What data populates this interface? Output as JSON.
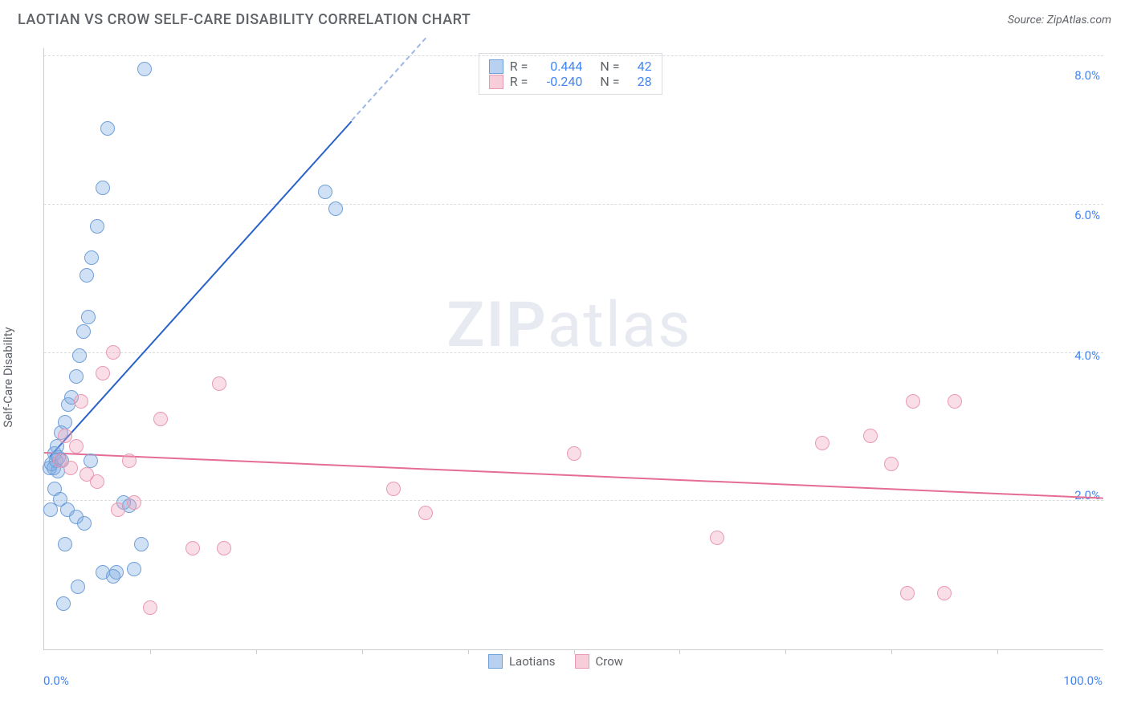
{
  "header": {
    "title": "LAOTIAN VS CROW SELF-CARE DISABILITY CORRELATION CHART",
    "source": "Source: ZipAtlas.com"
  },
  "y_axis_label": "Self-Care Disability",
  "watermark": {
    "zip": "ZIP",
    "atlas": "atlas"
  },
  "chart": {
    "type": "scatter",
    "xlim": [
      0,
      100
    ],
    "ylim": [
      0,
      8.6
    ],
    "x_ticks_minor": [
      10,
      20,
      30,
      40,
      50,
      60,
      70,
      80,
      90
    ],
    "x_tick_labels": [
      {
        "x": 0,
        "text": "0.0%",
        "align": "left"
      },
      {
        "x": 100,
        "text": "100.0%",
        "align": "right"
      }
    ],
    "y_ticks": [
      2.0,
      4.0,
      6.0,
      8.0
    ],
    "y_tick_labels": [
      "2.0%",
      "4.0%",
      "6.0%",
      "8.0%"
    ],
    "grid_y_dashed": [
      2.12,
      4.24,
      6.36,
      8.48
    ],
    "background_color": "#ffffff",
    "grid_color": "#dadce0",
    "axis_color": "#cccccc",
    "tick_label_color": "#4285f4",
    "series": [
      {
        "name": "Laotians",
        "marker_fill": "rgba(123,170,227,0.35)",
        "marker_stroke": "#6fa0d8",
        "marker_radius": 9,
        "trend": {
          "color": "#2a62c9",
          "x1": 0.5,
          "y1": 2.75,
          "x2": 29,
          "y2": 7.55,
          "dash_extend_to_x": 36
        },
        "points": [
          [
            0.5,
            2.6
          ],
          [
            0.7,
            2.65
          ],
          [
            0.9,
            2.6
          ],
          [
            1.1,
            2.7
          ],
          [
            1.3,
            2.55
          ],
          [
            1.0,
            2.8
          ],
          [
            1.4,
            2.75
          ],
          [
            1.7,
            2.7
          ],
          [
            1.2,
            2.9
          ],
          [
            1.6,
            3.1
          ],
          [
            2.0,
            3.25
          ],
          [
            2.3,
            3.5
          ],
          [
            2.6,
            3.6
          ],
          [
            3.0,
            3.9
          ],
          [
            3.3,
            4.2
          ],
          [
            3.7,
            4.55
          ],
          [
            4.2,
            4.75
          ],
          [
            4.0,
            5.35
          ],
          [
            4.5,
            5.6
          ],
          [
            5.0,
            6.05
          ],
          [
            5.5,
            6.6
          ],
          [
            6.0,
            7.45
          ],
          [
            9.5,
            8.3
          ],
          [
            26.5,
            6.55
          ],
          [
            27.5,
            6.3
          ],
          [
            1.0,
            2.3
          ],
          [
            1.5,
            2.15
          ],
          [
            2.2,
            2.0
          ],
          [
            3.0,
            1.9
          ],
          [
            3.8,
            1.8
          ],
          [
            4.4,
            2.7
          ],
          [
            5.5,
            1.1
          ],
          [
            6.8,
            1.1
          ],
          [
            7.5,
            2.1
          ],
          [
            8.0,
            2.05
          ],
          [
            9.2,
            1.5
          ],
          [
            1.8,
            0.65
          ],
          [
            3.2,
            0.9
          ],
          [
            6.5,
            1.05
          ],
          [
            8.5,
            1.15
          ],
          [
            2.0,
            1.5
          ],
          [
            0.6,
            2.0
          ]
        ]
      },
      {
        "name": "Crow",
        "marker_fill": "rgba(240,160,185,0.35)",
        "marker_stroke": "#e99ab3",
        "marker_radius": 9,
        "trend": {
          "color": "#e56d95",
          "x1": 0,
          "y1": 2.8,
          "x2": 100,
          "y2": 2.15
        },
        "points": [
          [
            2.0,
            3.05
          ],
          [
            3.0,
            2.9
          ],
          [
            3.5,
            3.55
          ],
          [
            5.5,
            3.95
          ],
          [
            6.5,
            4.25
          ],
          [
            8.0,
            2.7
          ],
          [
            11.0,
            3.3
          ],
          [
            14.0,
            1.45
          ],
          [
            17.0,
            1.45
          ],
          [
            16.5,
            3.8
          ],
          [
            7.0,
            2.0
          ],
          [
            8.5,
            2.1
          ],
          [
            10.0,
            0.6
          ],
          [
            33.0,
            2.3
          ],
          [
            36.0,
            1.95
          ],
          [
            50.0,
            2.8
          ],
          [
            63.5,
            1.6
          ],
          [
            73.5,
            2.95
          ],
          [
            78.0,
            3.05
          ],
          [
            80.0,
            2.65
          ],
          [
            82.0,
            3.55
          ],
          [
            86.0,
            3.55
          ],
          [
            81.5,
            0.8
          ],
          [
            85.0,
            0.8
          ],
          [
            1.5,
            2.7
          ],
          [
            2.5,
            2.6
          ],
          [
            4.0,
            2.5
          ],
          [
            5.0,
            2.4
          ]
        ]
      }
    ]
  },
  "stats_legend": {
    "rows": [
      {
        "swatch_fill": "#b9d1f0",
        "swatch_stroke": "#6fa0d8",
        "r_label": "R =",
        "r": "0.444",
        "n_label": "N =",
        "n": "42"
      },
      {
        "swatch_fill": "#f6cdd9",
        "swatch_stroke": "#e99ab3",
        "r_label": "R =",
        "r": "-0.240",
        "n_label": "N =",
        "n": "28"
      }
    ]
  },
  "x_legend": {
    "items": [
      {
        "swatch_fill": "#b9d1f0",
        "swatch_stroke": "#6fa0d8",
        "label": "Laotians"
      },
      {
        "swatch_fill": "#f6cdd9",
        "swatch_stroke": "#e99ab3",
        "label": "Crow"
      }
    ]
  }
}
